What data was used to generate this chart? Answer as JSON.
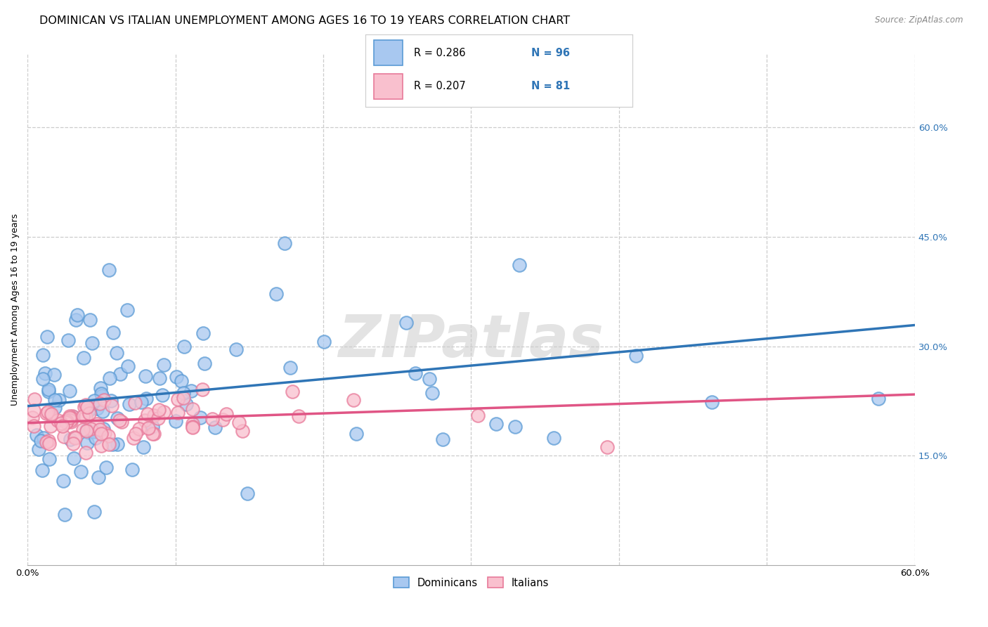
{
  "title": "DOMINICAN VS ITALIAN UNEMPLOYMENT AMONG AGES 16 TO 19 YEARS CORRELATION CHART",
  "source": "Source: ZipAtlas.com",
  "ylabel": "Unemployment Among Ages 16 to 19 years",
  "ytick_vals": [
    0.15,
    0.3,
    0.45,
    0.6
  ],
  "xlim": [
    0.0,
    0.6
  ],
  "ylim": [
    0.0,
    0.7
  ],
  "dominican_color": "#a8c8f0",
  "dominican_edge_color": "#5b9bd5",
  "italian_color": "#f9c0ce",
  "italian_edge_color": "#e87a9a",
  "dominican_line_color": "#2f75b6",
  "italian_line_color": "#e05585",
  "legend_r_dom": "0.286",
  "legend_n_dom": "96",
  "legend_r_ital": "0.207",
  "legend_n_ital": "81",
  "dominican_R": 0.286,
  "dominican_N": 96,
  "italian_R": 0.207,
  "italian_N": 81,
  "dom_intercept": 0.218,
  "dom_slope": 0.185,
  "ital_intercept": 0.195,
  "ital_slope": 0.065,
  "watermark": "ZIPatlas",
  "background_color": "#ffffff",
  "grid_color": "#cccccc",
  "title_fontsize": 11.5,
  "axis_label_fontsize": 9,
  "tick_fontsize": 9.5,
  "right_tick_color": "#2f75b6",
  "legend_text_color": "#2f75b6"
}
